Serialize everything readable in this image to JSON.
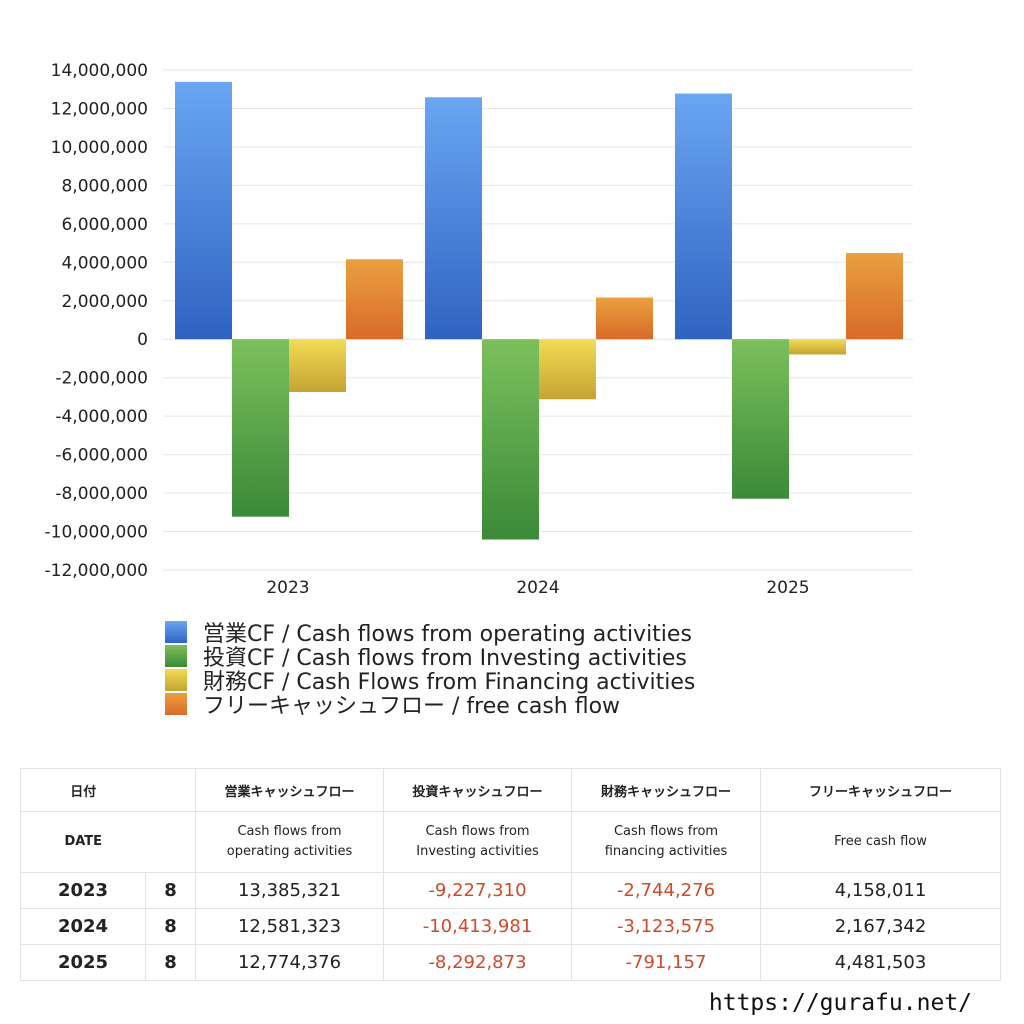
{
  "chart_data": {
    "type": "bar",
    "categories": [
      "2023",
      "2024",
      "2025"
    ],
    "series": [
      {
        "name": "営業CF / Cash flows from operating activities",
        "values": [
          13385321,
          12581323,
          12774376
        ],
        "color_top": "#6aa6f2",
        "color_bottom": "#2f63c2"
      },
      {
        "name": "投資CF / Cash flows from Investing activities",
        "values": [
          -9227310,
          -10413981,
          -8292873
        ],
        "color_top": "#7cc05c",
        "color_bottom": "#3a8a38"
      },
      {
        "name": "財務CF / Cash Flows from Financing activities",
        "values": [
          -2744276,
          -3123575,
          -791157
        ],
        "color_top": "#f2dc55",
        "color_bottom": "#c4a432"
      },
      {
        "name": "フリーキャッシュフロー / free cash flow",
        "values": [
          4158011,
          2167342,
          4481503
        ],
        "color_top": "#eaa040",
        "color_bottom": "#d86a28"
      }
    ],
    "ylim": [
      -12000000,
      14000000
    ],
    "yticks": [
      "14,000,000",
      "12,000,000",
      "10,000,000",
      "8,000,000",
      "6,000,000",
      "4,000,000",
      "2,000,000",
      "0",
      "-2,000,000",
      "-4,000,000",
      "-6,000,000",
      "-8,000,000",
      "-10,000,000",
      "-12,000,000"
    ],
    "ytick_values": [
      14000000,
      12000000,
      10000000,
      8000000,
      6000000,
      4000000,
      2000000,
      0,
      -2000000,
      -4000000,
      -6000000,
      -8000000,
      -10000000,
      -12000000
    ],
    "grid": true,
    "legend_position": "bottom"
  },
  "table": {
    "header_row1": [
      "日付",
      "",
      "営業キャッシュフロー",
      "投資キャッシュフロー",
      "財務キャッシュフロー",
      "フリーキャッシュフロー"
    ],
    "header_row2": {
      "date": "DATE",
      "operating_line1": "Cash flows from",
      "operating_line2": "operating activities",
      "investing_line1": "Cash flows from",
      "investing_line2": "Investing activities",
      "financing_line1": "Cash flows from",
      "financing_line2": "financing activities",
      "free": "Free cash flow"
    },
    "rows": [
      {
        "year": "2023",
        "month": "8",
        "operating": "13,385,321",
        "investing": "-9,227,310",
        "financing": "-2,744,276",
        "free": "4,158,011"
      },
      {
        "year": "2024",
        "month": "8",
        "operating": "12,581,323",
        "investing": "-10,413,981",
        "financing": "-3,123,575",
        "free": "2,167,342"
      },
      {
        "year": "2025",
        "month": "8",
        "operating": "12,774,376",
        "investing": "-8,292,873",
        "financing": "-791,157",
        "free": "4,481,503"
      }
    ]
  },
  "footer": {
    "url": "https://gurafu.net/"
  },
  "colors": {
    "negative": "#d04a2a",
    "grid": "#e6e6e6"
  }
}
